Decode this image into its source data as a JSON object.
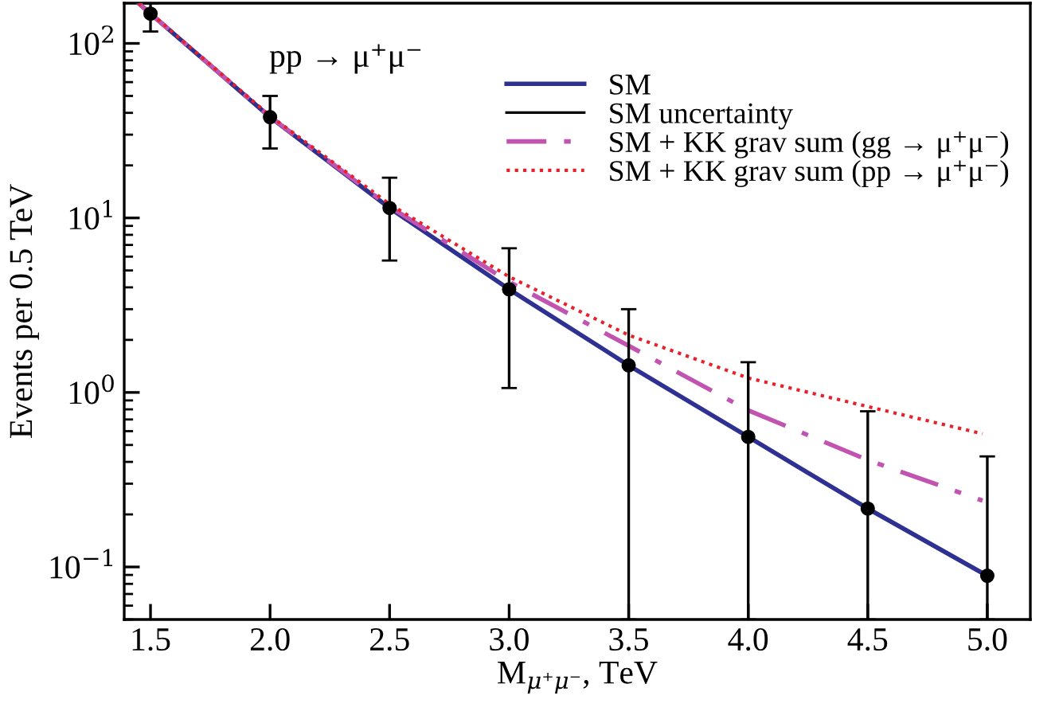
{
  "chart_data": {
    "type": "line",
    "xlabel": "M$_{μ⁺μ⁻}$, TeV",
    "ylabel": "Events per 0.5 TeV",
    "annotations": [
      "pp → μ⁺μ⁻"
    ],
    "log": "y",
    "xlim": [
      1.39,
      5.18
    ],
    "ylim": [
      0.05,
      170
    ],
    "xticks": [
      {
        "value": 1.5,
        "label": "1.5"
      },
      {
        "value": 2.0,
        "label": "2.0"
      },
      {
        "value": 2.5,
        "label": "2.5"
      },
      {
        "value": 3.0,
        "label": "3.0"
      },
      {
        "value": 3.5,
        "label": "3.5"
      },
      {
        "value": 4.0,
        "label": "4.0"
      },
      {
        "value": 4.5,
        "label": "4.5"
      },
      {
        "value": 5.0,
        "label": "5.0"
      }
    ],
    "yticks": [
      {
        "value": 0.1,
        "label": "10$^{−1}$"
      },
      {
        "value": 1,
        "label": "10$^{0}$"
      },
      {
        "value": 10,
        "label": "10$^{1}$"
      },
      {
        "value": 100,
        "label": "10$^{2}$"
      }
    ],
    "grid": false,
    "legend": "top right",
    "series": [
      {
        "name": "SM",
        "color": "#2e3192",
        "line_style": "solid",
        "x": [
          1.45,
          1.5,
          2.0,
          2.5,
          3.0,
          3.5,
          4.0,
          4.5,
          5.0
        ],
        "values": [
          170,
          148,
          37.8,
          11.4,
          3.9,
          1.43,
          0.556,
          0.216,
          0.089
        ]
      },
      {
        "name": "SM uncertainty",
        "type": "scatter",
        "color": "#000000",
        "marker": "circle",
        "x": [
          1.5,
          2.0,
          2.5,
          3.0,
          3.5,
          4.0,
          4.5,
          5.0
        ],
        "values": [
          148,
          37.8,
          11.4,
          3.9,
          1.43,
          0.556,
          0.216,
          0.089
        ],
        "errors": [
          [
            117,
            170
          ],
          [
            25,
            50
          ],
          [
            5.7,
            17
          ],
          [
            1.06,
            6.7
          ],
          [
            0.05,
            3.0
          ],
          [
            0.05,
            1.49
          ],
          [
            0.05,
            0.78
          ],
          [
            0.05,
            0.43
          ]
        ]
      },
      {
        "name": "SM + KK grav sum (gg → μ⁺μ⁻)",
        "color": "#c154b0",
        "line_style": "dashdot",
        "x": [
          1.45,
          1.5,
          2.0,
          2.5,
          3.0,
          3.5,
          4.0,
          4.5,
          4.98
        ],
        "values": [
          170,
          148,
          38,
          11.6,
          4.3,
          1.85,
          0.79,
          0.41,
          0.24
        ]
      },
      {
        "name": "SM + KK grav sum (pp → μ⁺μ⁻)",
        "color": "#e8202a",
        "line_style": "dotted",
        "x": [
          1.45,
          1.5,
          2.0,
          2.5,
          3.0,
          3.5,
          4.0,
          4.5,
          4.98
        ],
        "values": [
          170,
          149,
          38.5,
          12.0,
          4.6,
          2.13,
          1.21,
          0.83,
          0.58
        ]
      }
    ]
  }
}
